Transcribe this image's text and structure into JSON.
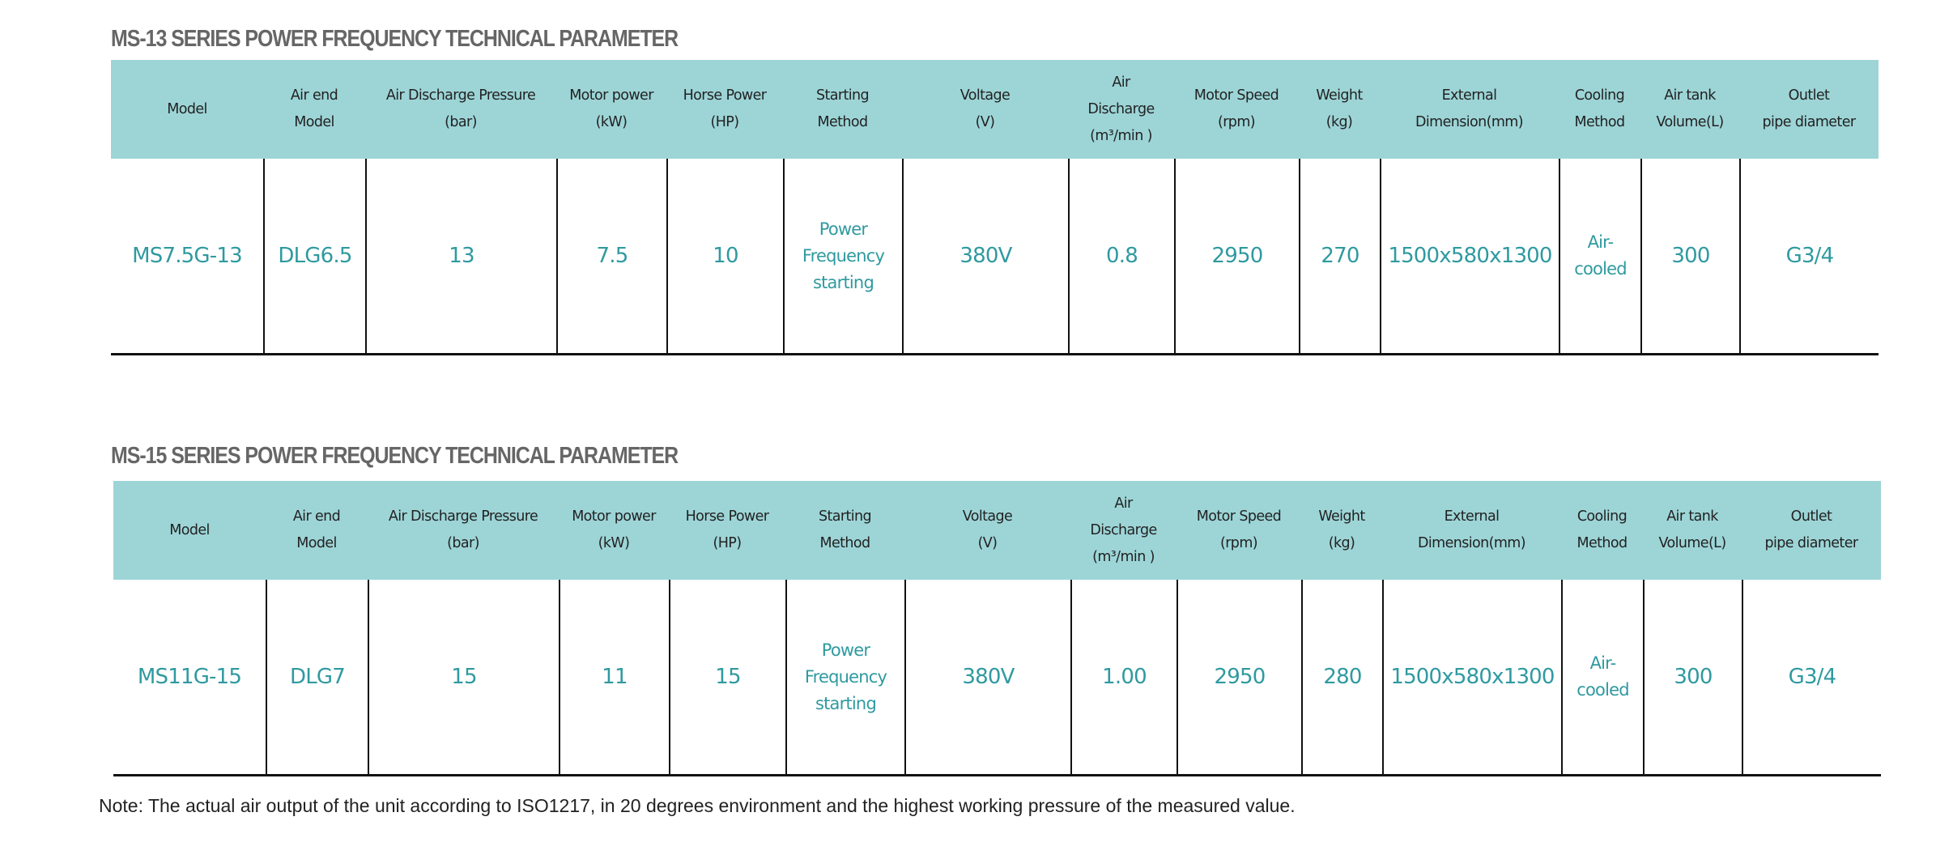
{
  "headers": [
    "Model",
    "Air end\nModel",
    "Air Discharge Pressure\n(bar)",
    "Motor power\n(kW)",
    "Horse Power\n(HP)",
    "Starting\nMethod",
    "Voltage\n(V)",
    "Air\nDischarge\n(m³/min )",
    "Motor Speed\n(rpm)",
    "Weight\n(kg)",
    "External\nDimension(mm)\n ",
    "Cooling\nMethod",
    "Air tank\nVolume(L)",
    "Outlet\npipe diameter\n "
  ],
  "tables": [
    {
      "title": "MS-13 SERIES POWER FREQUENCY TECHNICAL PARAMETER",
      "row": [
        "MS7.5G-13",
        "DLG6.5",
        "13",
        "7.5",
        "10",
        "Power\nFrequency\nstarting",
        "380V",
        "0.8",
        "2950",
        "270",
        "1500x580x1300",
        "Air-\ncooled",
        "300",
        "G3/4"
      ]
    },
    {
      "title": "MS-15 SERIES POWER FREQUENCY TECHNICAL PARAMETER",
      "row": [
        "MS11G-15",
        "DLG7",
        "15",
        "11",
        "15",
        "Power\nFrequency\nstarting",
        "380V",
        "1.00",
        "2950",
        "280",
        "1500x580x1300",
        "Air-\ncooled",
        "300",
        "G3/4"
      ]
    }
  ],
  "note": "Note: The actual air output of the unit according to ISO1217, in 20 degrees environment and the highest working pressure of the measured value.",
  "colors": {
    "header_bg": "#9dd5d7",
    "value_text": "#2f9aa0",
    "title_text": "#666666"
  }
}
